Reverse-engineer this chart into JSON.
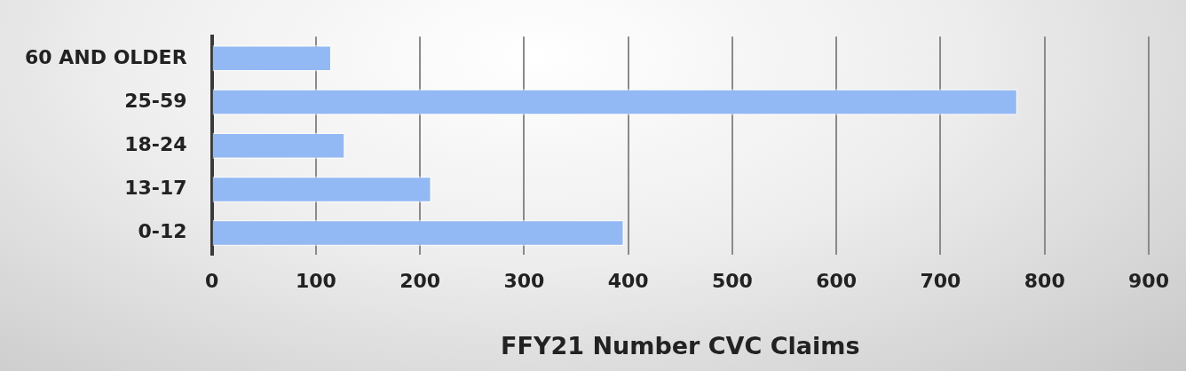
{
  "chart_data": {
    "type": "bar",
    "orientation": "horizontal",
    "xlabel": "FFY21 Number CVC Claims",
    "categories": [
      "60 AND OLDER",
      "25-59",
      "18-24",
      "13-17",
      "0-12"
    ],
    "values": [
      115,
      774,
      128,
      211,
      396
    ],
    "color": "#93b9f4",
    "xlim": [
      0,
      900
    ],
    "xticks": [
      0,
      100,
      200,
      300,
      400,
      500,
      600,
      700,
      800,
      900
    ],
    "grid": "x",
    "legend": false
  }
}
